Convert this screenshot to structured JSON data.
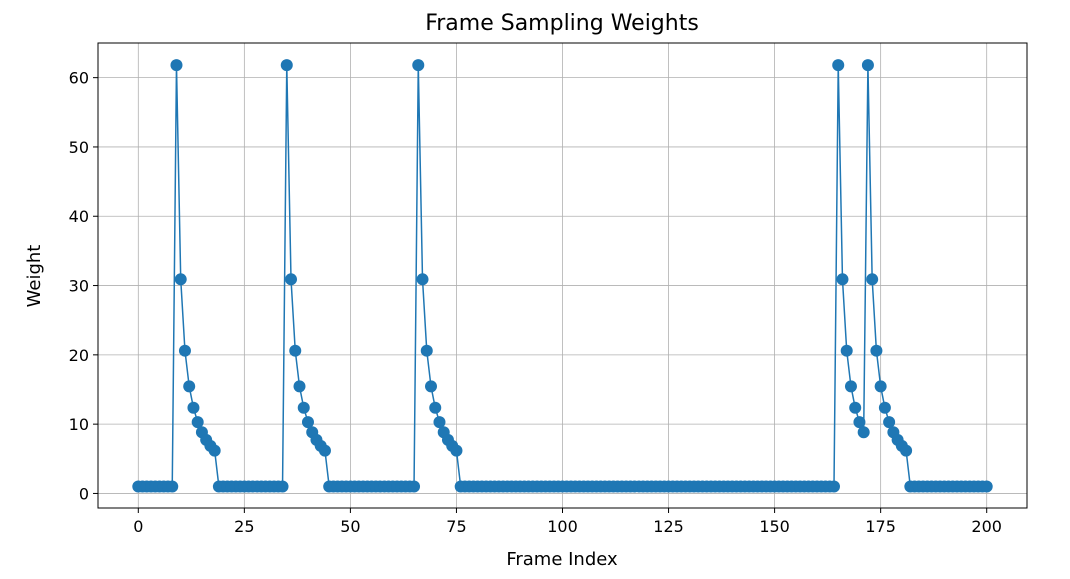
{
  "chart_data": {
    "type": "line",
    "title": "Frame Sampling Weights",
    "xlabel": "Frame Index",
    "ylabel": "Weight",
    "xlim": [
      -9.5,
      209.5
    ],
    "ylim": [
      -2.1,
      65.0
    ],
    "xticks": [
      0,
      25,
      50,
      75,
      100,
      125,
      150,
      175,
      200
    ],
    "yticks": [
      0,
      10,
      20,
      30,
      40,
      50,
      60
    ],
    "grid": true,
    "marker": "circle",
    "color": "#1f77b4",
    "base_value": 1.0,
    "x_range": [
      0,
      200
    ],
    "spikes": [
      {
        "start": 9,
        "values": [
          61.8,
          30.9,
          20.6,
          15.45,
          12.36,
          10.3,
          8.83,
          7.73,
          6.87,
          6.18
        ]
      },
      {
        "start": 35,
        "values": [
          61.8,
          30.9,
          20.6,
          15.45,
          12.36,
          10.3,
          8.83,
          7.73,
          6.87,
          6.18
        ]
      },
      {
        "start": 66,
        "values": [
          61.8,
          30.9,
          20.6,
          15.45,
          12.36,
          10.3,
          8.83,
          7.73,
          6.87,
          6.18
        ]
      },
      {
        "start": 165,
        "values": [
          61.8,
          30.9,
          20.6,
          15.45,
          12.36,
          10.3,
          8.83
        ]
      },
      {
        "start": 172,
        "values": [
          61.8,
          30.9,
          20.6,
          15.45,
          12.36,
          10.3,
          8.83,
          7.73,
          6.87,
          6.18
        ]
      }
    ]
  }
}
